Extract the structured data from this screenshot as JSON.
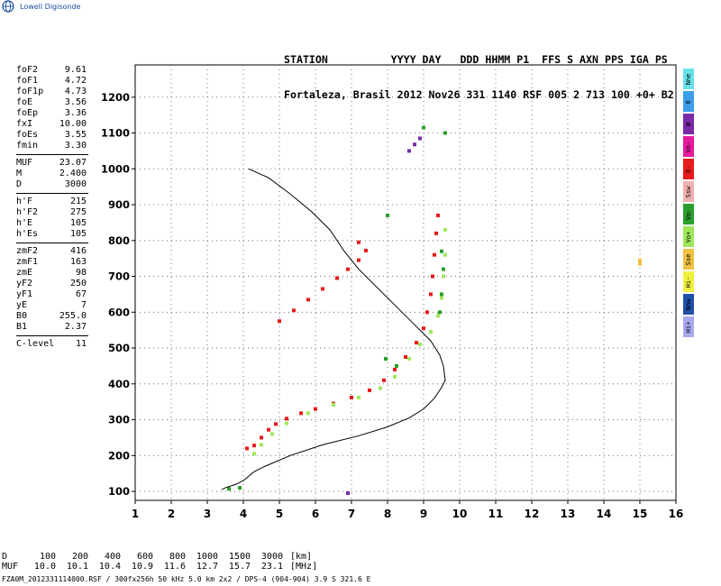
{
  "brand": {
    "name": "Lowell Digisonde",
    "logo_icon": "globe-icon",
    "color": "#1a4ca0"
  },
  "header": {
    "line1": "STATION          YYYY DAY   DDD HHMM P1  FFS S AXN PPS IGA PS",
    "line2": "Fortaleza, Brasil 2012 Nov26 331 1140 RSF 005 2 713 100 +0+ B2"
  },
  "params": [
    [
      {
        "name": "foF2",
        "value": "9.61"
      },
      {
        "name": "foF1",
        "value": "4.72"
      },
      {
        "name": "foF1p",
        "value": "4.73"
      },
      {
        "name": "foE",
        "value": "3.56"
      },
      {
        "name": "foEp",
        "value": "3.36"
      },
      {
        "name": "fxI",
        "value": "10.00"
      },
      {
        "name": "foEs",
        "value": "3.55"
      },
      {
        "name": "fmin",
        "value": "3.30"
      }
    ],
    [
      {
        "name": "MUF",
        "value": "23.07"
      },
      {
        "name": "M",
        "value": "2.400"
      },
      {
        "name": "D",
        "value": "3000"
      }
    ],
    [
      {
        "name": "h'F",
        "value": "215"
      },
      {
        "name": "h'F2",
        "value": "275"
      },
      {
        "name": "h'E",
        "value": "105"
      },
      {
        "name": "h'Es",
        "value": "105"
      }
    ],
    [
      {
        "name": "zmF2",
        "value": "416"
      },
      {
        "name": "zmF1",
        "value": "163"
      },
      {
        "name": "zmE",
        "value": "98"
      },
      {
        "name": "yF2",
        "value": "250"
      },
      {
        "name": "yF1",
        "value": "67"
      },
      {
        "name": "yE",
        "value": "7"
      },
      {
        "name": "B0",
        "value": "255.0"
      },
      {
        "name": "B1",
        "value": "2.37"
      }
    ],
    [
      {
        "name": "C-level",
        "value": "11"
      }
    ]
  ],
  "tabs": [
    {
      "label": "Nne",
      "color": "#66e0e8"
    },
    {
      "label": "E",
      "color": "#3a9ee8"
    },
    {
      "label": "W",
      "color": "#7a2aa8"
    },
    {
      "label": "Vo-",
      "color": "#e81aa0"
    },
    {
      "label": "X-",
      "color": "#e81a1a"
    },
    {
      "label": "Ssw",
      "color": "#f0b0b0"
    },
    {
      "label": "Vo-",
      "color": "#2a9e2a"
    },
    {
      "label": "Vo+",
      "color": "#9ee85a"
    },
    {
      "label": "Sse",
      "color": "#f0c040"
    },
    {
      "label": "Hi-",
      "color": "#f0f040"
    },
    {
      "label": "Nnw",
      "color": "#2050a8"
    },
    {
      "label": "Hi+",
      "color": "#a8a8f0"
    }
  ],
  "footer": {
    "d_label": "D",
    "d_values": [
      "100",
      "200",
      "400",
      "600",
      "800",
      "1000",
      "1500",
      "3000"
    ],
    "d_unit": "[km]",
    "muf_label": "MUF",
    "muf_values": [
      "10.0",
      "10.1",
      "10.4",
      "10.9",
      "11.6",
      "12.7",
      "15.7",
      "23.1"
    ],
    "muf_unit": "[MHz]",
    "file_line": "FZA0M_2012331114000.RSF / 300fx256h 50 kHz 5.0 km 2x2 / DPS-4 (904-904)  3.9 S 321.6 E"
  },
  "chart_data": {
    "type": "scatter",
    "title": "",
    "xlabel": "",
    "ylabel": "",
    "xlim": [
      1,
      16
    ],
    "ylim": [
      75,
      1290
    ],
    "x_ticks": [
      1,
      2,
      3,
      4,
      5,
      6,
      7,
      8,
      9,
      10,
      11,
      12,
      13,
      14,
      15,
      16
    ],
    "y_ticks": [
      100,
      200,
      300,
      400,
      500,
      600,
      700,
      800,
      900,
      1000,
      1100,
      1200
    ],
    "grid": "dotted",
    "profile": {
      "color": "#000000",
      "points": [
        [
          3.4,
          105
        ],
        [
          3.5,
          110
        ],
        [
          3.8,
          120
        ],
        [
          4.0,
          130
        ],
        [
          4.3,
          155
        ],
        [
          4.6,
          170
        ],
        [
          5.3,
          200
        ],
        [
          6.2,
          230
        ],
        [
          7.2,
          255
        ],
        [
          8.0,
          280
        ],
        [
          8.6,
          305
        ],
        [
          9.0,
          330
        ],
        [
          9.3,
          360
        ],
        [
          9.5,
          390
        ],
        [
          9.6,
          410
        ],
        [
          9.55,
          450
        ],
        [
          9.45,
          480
        ],
        [
          9.2,
          520
        ],
        [
          8.8,
          560
        ],
        [
          8.3,
          610
        ],
        [
          7.8,
          660
        ],
        [
          7.2,
          720
        ],
        [
          6.8,
          770
        ],
        [
          6.4,
          830
        ],
        [
          5.9,
          880
        ],
        [
          5.3,
          930
        ],
        [
          4.7,
          975
        ],
        [
          4.15,
          1000
        ]
      ]
    },
    "series": [
      {
        "name": "X-",
        "color": "#e81a1a",
        "points": [
          [
            4.1,
            220
          ],
          [
            4.3,
            228
          ],
          [
            4.5,
            250
          ],
          [
            4.7,
            272
          ],
          [
            4.9,
            288
          ],
          [
            5.2,
            303
          ],
          [
            5.6,
            318
          ],
          [
            6.0,
            330
          ],
          [
            6.5,
            345
          ],
          [
            7.0,
            362
          ],
          [
            7.5,
            382
          ],
          [
            7.9,
            410
          ],
          [
            8.2,
            440
          ],
          [
            8.5,
            475
          ],
          [
            8.8,
            515
          ],
          [
            9.0,
            555
          ],
          [
            9.1,
            600
          ],
          [
            9.2,
            650
          ],
          [
            9.25,
            700
          ],
          [
            9.3,
            760
          ],
          [
            9.35,
            820
          ],
          [
            9.4,
            870
          ]
        ]
      },
      {
        "name": "Vo+",
        "color": "#9ee85a",
        "points": [
          [
            4.3,
            205
          ],
          [
            4.5,
            230
          ],
          [
            4.8,
            260
          ],
          [
            5.2,
            290
          ],
          [
            5.8,
            318
          ],
          [
            6.5,
            342
          ],
          [
            7.2,
            362
          ],
          [
            7.8,
            388
          ],
          [
            8.2,
            420
          ],
          [
            8.6,
            470
          ],
          [
            8.9,
            510
          ],
          [
            9.2,
            545
          ],
          [
            9.4,
            590
          ],
          [
            9.5,
            640
          ],
          [
            9.55,
            700
          ],
          [
            9.6,
            760
          ],
          [
            9.6,
            830
          ]
        ]
      },
      {
        "name": "Vo-",
        "color": "#2a9e2a",
        "points": [
          [
            3.6,
            107
          ],
          [
            3.9,
            110
          ],
          [
            9.45,
            600
          ],
          [
            9.5,
            650
          ],
          [
            9.55,
            720
          ],
          [
            7.95,
            470
          ],
          [
            8.25,
            450
          ],
          [
            9.5,
            770
          ]
        ]
      },
      {
        "name": "X- oblique",
        "color": "#e81a1a",
        "points": [
          [
            5.0,
            575
          ],
          [
            5.4,
            605
          ],
          [
            5.8,
            635
          ],
          [
            6.2,
            665
          ],
          [
            6.6,
            695
          ],
          [
            6.9,
            720
          ],
          [
            7.2,
            745
          ],
          [
            7.4,
            772
          ],
          [
            7.2,
            795
          ]
        ]
      },
      {
        "name": "W",
        "color": "#7a2aa8",
        "points": [
          [
            8.6,
            1050
          ],
          [
            8.75,
            1068
          ],
          [
            8.9,
            1085
          ],
          [
            6.9,
            95
          ]
        ]
      },
      {
        "name": "Vo-",
        "color": "#2a9e2a",
        "points": [
          [
            9.0,
            1115
          ],
          [
            8.0,
            870
          ],
          [
            9.6,
            1100
          ]
        ]
      },
      {
        "name": "Sse",
        "color": "#f0c040",
        "points": [
          [
            15.0,
            745
          ],
          [
            15.0,
            735
          ]
        ]
      }
    ]
  }
}
